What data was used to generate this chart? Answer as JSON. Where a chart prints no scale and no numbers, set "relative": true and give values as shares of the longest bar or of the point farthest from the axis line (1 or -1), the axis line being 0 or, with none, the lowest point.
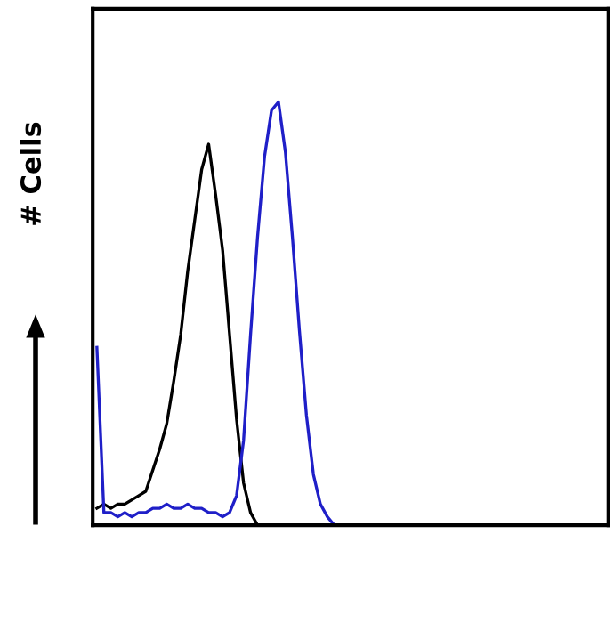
{
  "chart_data": {
    "type": "line",
    "relative": true,
    "ylabel": "# Cells",
    "grid": false,
    "marker": "none",
    "line_style": "solid",
    "categories": [
      null,
      null,
      null,
      null,
      null,
      null,
      null,
      null,
      null,
      null,
      null,
      null,
      null,
      null,
      null,
      null,
      null,
      null,
      null,
      null,
      null,
      null,
      null,
      null,
      null,
      null,
      null,
      null,
      null,
      null,
      null,
      null,
      null,
      null,
      null,
      null,
      null,
      null,
      null,
      null,
      null,
      null,
      null,
      null,
      null,
      null,
      null,
      null,
      null,
      null,
      null,
      null,
      null,
      null,
      null,
      null,
      null,
      null,
      null,
      null,
      null,
      null,
      null,
      null,
      null,
      null,
      null,
      null,
      null,
      null,
      null,
      null,
      null,
      null
    ],
    "series": [
      {
        "color": "#000000",
        "values": [
          0.04,
          0.05,
          0.04,
          0.05,
          0.05,
          0.06,
          0.07,
          0.08,
          0.13,
          0.18,
          0.24,
          0.34,
          0.45,
          0.6,
          0.72,
          0.84,
          0.9,
          0.78,
          0.65,
          0.45,
          0.25,
          0.1,
          0.03,
          0,
          null,
          null,
          null,
          null,
          null,
          null,
          null,
          null,
          null,
          null,
          null,
          null,
          null,
          null,
          null,
          null,
          null,
          null,
          null,
          null,
          null,
          null,
          null,
          null,
          null,
          null,
          null,
          null,
          null,
          null,
          null,
          null,
          null,
          null,
          null,
          null,
          null,
          null,
          null,
          null,
          null,
          null,
          null,
          null,
          null,
          null,
          null,
          null,
          null,
          null
        ]
      },
      {
        "color": "#1f1fc8",
        "values": [
          0.42,
          0.03,
          0.03,
          0.02,
          0.03,
          0.02,
          0.03,
          0.03,
          0.04,
          0.04,
          0.05,
          0.04,
          0.04,
          0.05,
          0.04,
          0.04,
          0.03,
          0.03,
          0.02,
          0.03,
          0.07,
          0.2,
          0.45,
          0.68,
          0.87,
          0.98,
          1.0,
          0.88,
          0.68,
          0.46,
          0.26,
          0.12,
          0.05,
          0.02,
          0,
          null,
          null,
          null,
          null,
          null,
          null,
          null,
          null,
          null,
          null,
          null,
          null,
          null,
          null,
          null,
          null,
          null,
          null,
          null,
          null,
          null,
          null,
          null,
          null,
          null,
          null,
          null,
          null,
          null,
          null,
          null,
          null,
          null,
          null,
          null,
          null,
          null,
          null,
          null
        ]
      }
    ]
  }
}
